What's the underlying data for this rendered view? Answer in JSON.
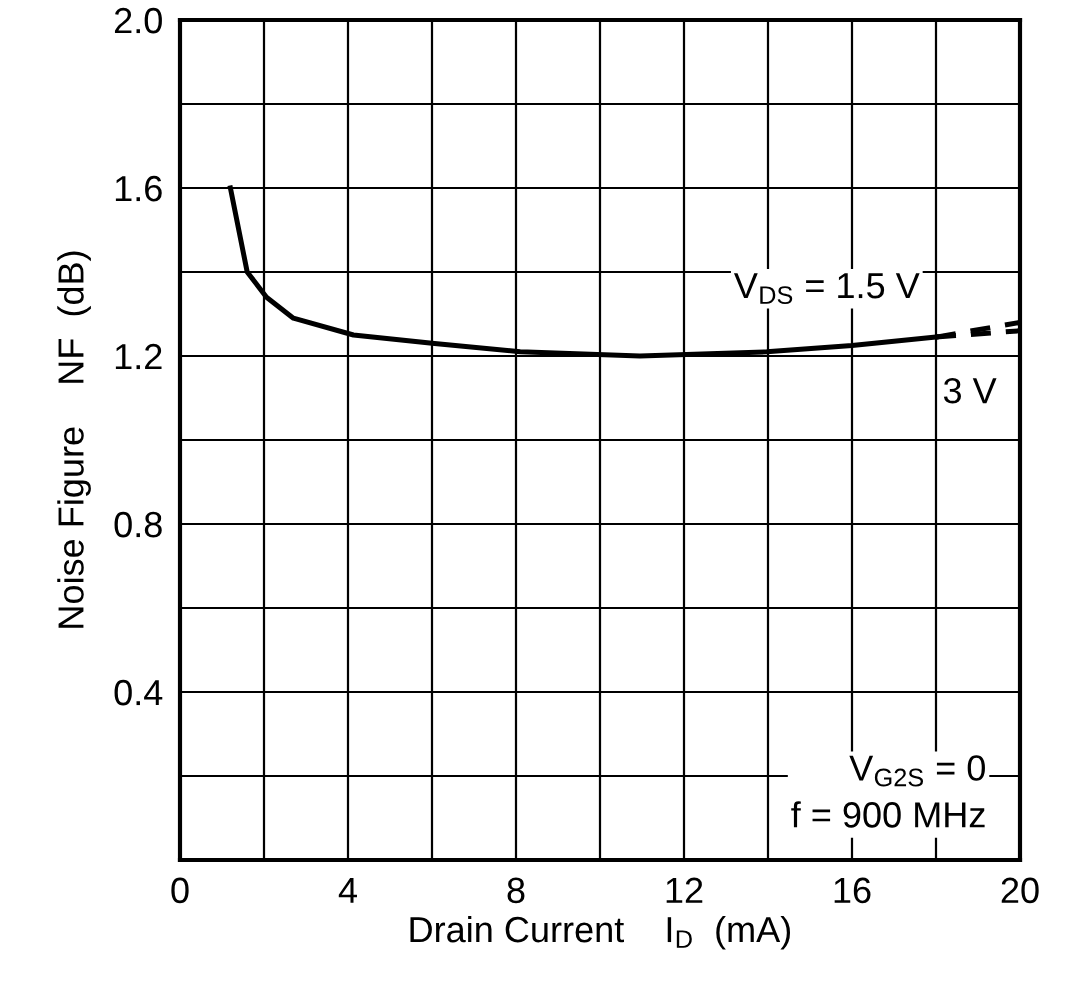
{
  "chart_data": {
    "type": "line",
    "xlabel": "Drain Current    I$_{D}$  (mA)",
    "ylabel": "Noise Figure    NF  (dB)",
    "xlim": [
      0,
      20
    ],
    "ylim": [
      0,
      2.0
    ],
    "xticks": [
      0,
      {
        "value": 2,
        "label": null
      },
      4,
      {
        "value": 6,
        "label": null
      },
      8,
      {
        "value": 10,
        "label": null
      },
      12,
      {
        "value": 14,
        "label": null
      },
      16,
      {
        "value": 18,
        "label": null
      },
      20
    ],
    "yticks": [
      {
        "value": 0.2,
        "label": null
      },
      0.4,
      {
        "value": 0.6,
        "label": null
      },
      0.8,
      {
        "value": 1.0,
        "label": null
      },
      1.2,
      {
        "value": 1.4,
        "label": null
      },
      1.6,
      {
        "value": 1.8,
        "label": null
      },
      {
        "value": 2.0,
        "label": "2.0"
      }
    ],
    "grid": true,
    "legend": false,
    "marker": "none",
    "series": [
      {
        "color": "#000000",
        "line_style": "solid",
        "x": [
          1.2,
          1.6,
          2.06,
          2.7,
          4.13,
          6.06,
          8.1,
          10.95,
          13.97,
          16.0,
          18.0
        ],
        "values": [
          1.6,
          1.4,
          1.34,
          1.29,
          1.25,
          1.23,
          1.21,
          1.2,
          1.21,
          1.225,
          1.245
        ]
      },
      {
        "color": "#000000",
        "line_style": "dashed",
        "x": [
          18.0,
          20.0
        ],
        "values": [
          1.245,
          1.28
        ]
      },
      {
        "color": "#000000",
        "line_style": "dashed",
        "x": [
          18.0,
          20.0
        ],
        "values": [
          1.245,
          1.26
        ]
      }
    ],
    "annotations": [
      "V$_{DS}$ = 1.5 V",
      "3 V",
      "V$_{G2S}$ = 0\nf = 900 MHz"
    ]
  }
}
